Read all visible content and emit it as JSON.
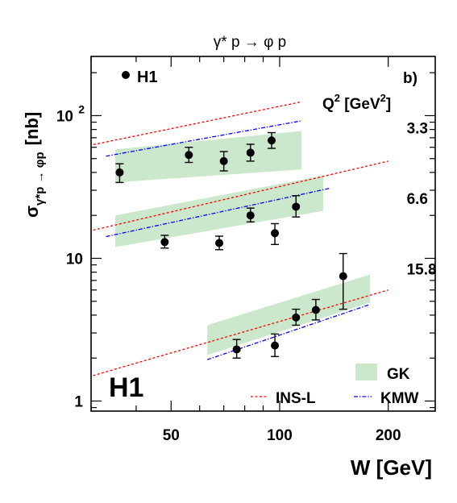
{
  "chart_data": {
    "type": "scatter",
    "title": "γ* p → φ p",
    "panel_label": "b)",
    "xlabel": "W [GeV]",
    "ylabel": {
      "sigma": "σ",
      "sub": "γ*p → φp",
      "unit": "[nb]"
    },
    "x_scale": "log",
    "y_scale": "log",
    "xlim": [
      30,
      270
    ],
    "ylim": [
      0.85,
      260
    ],
    "x_ticks": [
      {
        "value": 50,
        "label": "50"
      },
      {
        "value": 100,
        "label": "100"
      },
      {
        "value": 200,
        "label": "200"
      }
    ],
    "y_ticks": [
      {
        "value": 1,
        "label": "1"
      },
      {
        "value": 10,
        "label": "10"
      },
      {
        "value": 100,
        "label": "10",
        "sup": "2"
      }
    ],
    "q2_header": {
      "text": "Q",
      "sup1": "2",
      "mid": " [GeV",
      "sup2": "2",
      "end": "]"
    },
    "collab_logo": "H1",
    "series": [
      {
        "name": "H1",
        "kind": "data",
        "color": "#000000",
        "points": [
          {
            "Q2": "3.3",
            "x": 36,
            "y": 40,
            "err_lo": 34,
            "err_hi": 46
          },
          {
            "Q2": "3.3",
            "x": 56,
            "y": 53,
            "err_lo": 47,
            "err_hi": 60
          },
          {
            "Q2": "3.3",
            "x": 70,
            "y": 48,
            "err_lo": 41,
            "err_hi": 56
          },
          {
            "Q2": "3.3",
            "x": 83,
            "y": 55,
            "err_lo": 48,
            "err_hi": 63
          },
          {
            "Q2": "3.3",
            "x": 95,
            "y": 67,
            "err_lo": 59,
            "err_hi": 76
          },
          {
            "Q2": "6.6",
            "x": 48,
            "y": 13,
            "err_lo": 11.8,
            "err_hi": 14.5
          },
          {
            "Q2": "6.6",
            "x": 68,
            "y": 12.8,
            "err_lo": 11.5,
            "err_hi": 14.3
          },
          {
            "Q2": "6.6",
            "x": 83,
            "y": 20,
            "err_lo": 18,
            "err_hi": 22.5
          },
          {
            "Q2": "6.6",
            "x": 97,
            "y": 15,
            "err_lo": 12.5,
            "err_hi": 17.5
          },
          {
            "Q2": "6.6",
            "x": 111,
            "y": 23,
            "err_lo": 19.5,
            "err_hi": 27.5
          },
          {
            "Q2": "15.8",
            "x": 76,
            "y": 2.3,
            "err_lo": 2.0,
            "err_hi": 2.7
          },
          {
            "Q2": "15.8",
            "x": 97,
            "y": 2.45,
            "err_lo": 2.05,
            "err_hi": 2.95
          },
          {
            "Q2": "15.8",
            "x": 111,
            "y": 3.85,
            "err_lo": 3.4,
            "err_hi": 4.4
          },
          {
            "Q2": "15.8",
            "x": 126,
            "y": 4.35,
            "err_lo": 3.7,
            "err_hi": 5.15
          },
          {
            "Q2": "15.8",
            "x": 150,
            "y": 7.5,
            "err_lo": 4.4,
            "err_hi": 10.8
          }
        ]
      },
      {
        "name": "GK",
        "kind": "band",
        "color": "#cce8cc",
        "bands": [
          {
            "Q2": "3.3",
            "x": [
              35,
              115
            ],
            "lower": [
              34,
              42
            ],
            "upper": [
              58,
              78
            ]
          },
          {
            "Q2": "6.6",
            "x": [
              35,
              132
            ],
            "lower": [
              12,
              21.5
            ],
            "upper": [
              20,
              38
            ]
          },
          {
            "Q2": "15.8",
            "x": [
              63,
              178
            ],
            "lower": [
              2.1,
              4.9
            ],
            "upper": [
              3.4,
              7.7
            ]
          }
        ]
      },
      {
        "name": "INS-L",
        "kind": "dashed",
        "color": "#ff0000",
        "lines": [
          {
            "Q2": "3.3",
            "x": [
              28,
              115
            ],
            "y": [
              60,
              125
            ]
          },
          {
            "Q2": "6.6",
            "x": [
              28,
              200
            ],
            "y": [
              15,
              48
            ]
          },
          {
            "Q2": "15.8",
            "x": [
              28,
              200
            ],
            "y": [
              1.42,
              6.0
            ]
          }
        ]
      },
      {
        "name": "KMW",
        "kind": "dashdot",
        "color": "#0000ff",
        "lines": [
          {
            "Q2": "3.3",
            "x": [
              33,
              115
            ],
            "y": [
              52,
              92
            ]
          },
          {
            "Q2": "6.6",
            "x": [
              33,
              138
            ],
            "y": [
              14.2,
              31
            ]
          },
          {
            "Q2": "15.8",
            "x": [
              63,
              178
            ],
            "y": [
              1.95,
              4.75
            ]
          }
        ]
      }
    ],
    "q2_labels": [
      {
        "text": "3.3",
        "x": 225,
        "y": 75
      },
      {
        "text": "6.6",
        "x": 225,
        "y": 24
      },
      {
        "text": "15.8",
        "x": 225,
        "y": 7.7
      }
    ],
    "legend": {
      "h1": {
        "label": "H1",
        "placement": "top-left"
      },
      "models": [
        {
          "label": "GK",
          "style": "band"
        },
        {
          "label": "INS-L",
          "style": "dashed"
        },
        {
          "label": "KMW",
          "style": "dashdot"
        }
      ],
      "placement": "bottom-right"
    }
  }
}
